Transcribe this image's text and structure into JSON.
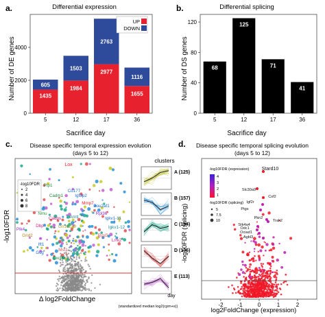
{
  "panels": {
    "a": {
      "tag": "a.",
      "title": "Differential expression"
    },
    "b": {
      "tag": "b.",
      "title": "Differential splicing"
    },
    "c": {
      "tag": "c.",
      "title_line1": "Disease specific temporal expression evolution",
      "title_line2": "(days 5 to 12)"
    },
    "d": {
      "tag": "d.",
      "title_line1": "Disease specific temporal splicing evolution",
      "title_line2": "(days 5 to 12)"
    }
  },
  "colors": {
    "up": "#e8212e",
    "down": "#2e4a9a",
    "ds_bar": "#000000",
    "grey_points": "#8a8a8a",
    "hline": "#d8353a"
  },
  "chart_data": [
    {
      "id": "a",
      "type": "bar",
      "stacked": true,
      "title": "Differential expression",
      "xlabel": "Sacrifice day",
      "ylabel": "Number of DE genes",
      "categories": [
        "5",
        "12",
        "17",
        "36"
      ],
      "series": [
        {
          "name": "UP",
          "values": [
            1435,
            1984,
            2977,
            1655
          ]
        },
        {
          "name": "DOWN",
          "values": [
            605,
            1503,
            2763,
            1116
          ]
        }
      ],
      "ylim": [
        0,
        6000
      ],
      "yticks": [
        "0",
        "2000",
        "4000"
      ],
      "legend": {
        "position": "top-right",
        "labels": [
          "UP",
          "DOWN"
        ]
      }
    },
    {
      "id": "b",
      "type": "bar",
      "title": "Differential splicing",
      "xlabel": "Sacrifice day",
      "ylabel": "Number of DS genes",
      "categories": [
        "5",
        "12",
        "17",
        "36"
      ],
      "values": [
        68,
        125,
        71,
        41
      ],
      "ylim": [
        0,
        130
      ],
      "yticks": [
        "0",
        "40",
        "80",
        "120"
      ]
    },
    {
      "id": "c",
      "type": "scatter",
      "title": "Disease specific temporal expression evolution (days 5 to 12)",
      "xlabel": "Δ log2FoldChange",
      "ylabel": "-log10FDR",
      "legend_title": "-log10FDR",
      "legend_sizes": [
        "2",
        "4",
        "6",
        "8"
      ],
      "gene_labels": [
        "Lox",
        "Ptp1",
        "Cd177",
        "Cadm1",
        "Igfbp2",
        "Mmp7",
        "Nmu",
        "Cadps",
        "Arntl",
        "Pou2af1",
        "Dbp",
        "Gn16239",
        "Rpl36",
        "Igkv1-11",
        "Grid2",
        "Igkv1-12",
        "Ift1",
        "Gcg",
        "Mst1",
        "Rgs5",
        "Lrrk2",
        "Cxcl4",
        "Plk4"
      ],
      "clusters_header": "clusters",
      "clusters": [
        {
          "label": "A (125)",
          "color": "#b8b81a"
        },
        {
          "label": "B (157)",
          "color": "#2a8fd6"
        },
        {
          "label": "C (194)",
          "color": "#1aa88a"
        },
        {
          "label": "D (136)",
          "color": "#e05050"
        },
        {
          "label": "E (113)",
          "color": "#c060d0"
        }
      ],
      "cluster_xlabel": "day",
      "cluster_ylabel": "(standardized median log2(cpm+s))"
    },
    {
      "id": "d",
      "type": "scatter",
      "title": "Disease specific temporal splicing evolution (days 5 to 12)",
      "xlabel": "log2FoldChange (expression)",
      "ylabel": "-log10FDR (splicing)",
      "xlim": [
        -3,
        3
      ],
      "xticks": [
        "-2",
        "-1",
        "0",
        "1",
        "2"
      ],
      "legend_color_title": "-log10FDR (expression)",
      "legend_color_ticks": [
        "4",
        "3",
        "2",
        "1"
      ],
      "legend_size_title": "-log10FDR (splicing)",
      "legend_sizes": [
        "5",
        "7.5",
        "10"
      ],
      "gene_labels": [
        "Stard10",
        "Slc30a9",
        "Csf2",
        "Igf2r",
        "Ptgs",
        "Pkn2",
        "Trak2",
        "Stk4a4",
        "Odc1",
        "Ociad1",
        "Agbl3"
      ]
    }
  ]
}
